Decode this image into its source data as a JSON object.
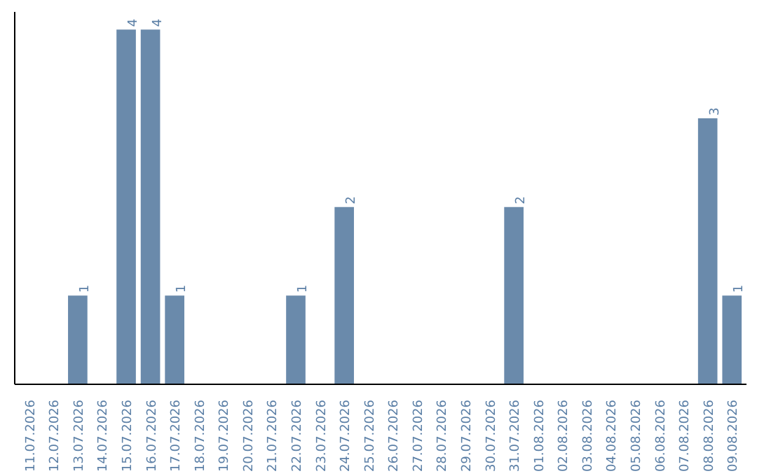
{
  "chart_data": {
    "type": "bar",
    "categories": [
      "11.07.2026",
      "12.07.2026",
      "13.07.2026",
      "14.07.2026",
      "15.07.2026",
      "16.07.2026",
      "17.07.2026",
      "18.07.2026",
      "19.07.2026",
      "20.07.2026",
      "21.07.2026",
      "22.07.2026",
      "23.07.2026",
      "24.07.2026",
      "25.07.2026",
      "26.07.2026",
      "27.07.2026",
      "28.07.2026",
      "29.07.2026",
      "30.07.2026",
      "31.07.2026",
      "01.08.2026",
      "02.08.2026",
      "03.08.2026",
      "04.08.2026",
      "05.08.2026",
      "06.08.2026",
      "07.08.2026",
      "08.08.2026",
      "09.08.2026"
    ],
    "values": [
      0,
      0,
      1,
      0,
      4,
      4,
      1,
      0,
      0,
      0,
      0,
      1,
      0,
      2,
      0,
      0,
      0,
      0,
      0,
      0,
      2,
      0,
      0,
      0,
      0,
      0,
      0,
      0,
      3,
      1
    ],
    "value_labels": [
      null,
      null,
      "1",
      null,
      "4",
      "4",
      "1",
      null,
      null,
      null,
      null,
      "1",
      null,
      "2",
      null,
      null,
      null,
      null,
      null,
      null,
      "2",
      null,
      null,
      null,
      null,
      null,
      null,
      null,
      "3",
      "1"
    ],
    "color": "#6a8aab",
    "grid": false,
    "tick_labels": "x"
  }
}
